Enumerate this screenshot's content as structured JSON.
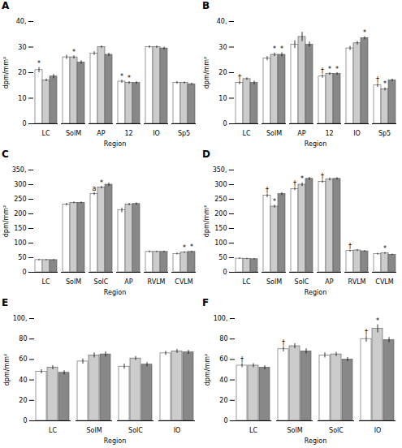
{
  "chart_data": [
    {
      "type": "bar",
      "title": "A",
      "xlabel": "Region",
      "ylabel": "dpm/mm²",
      "grid": false,
      "ylim": [
        0,
        40
      ],
      "yticks": [
        0,
        10,
        20,
        30,
        {
          "value": 40,
          "label": "40,"
        }
      ],
      "categories": [
        "LC",
        "SolM",
        "AP",
        "12",
        "IO",
        "Sp5"
      ],
      "series": [
        {
          "color": "#ffffff",
          "values": [
            21,
            26,
            27.5,
            16.5,
            30,
            16
          ],
          "errors": [
            1.0,
            0.8,
            0.7,
            0.6,
            0.5,
            0.5
          ]
        },
        {
          "color": "#cccccc",
          "values": [
            17,
            26,
            30,
            16,
            30,
            16
          ],
          "errors": [
            0.5,
            0.6,
            0.5,
            0.5,
            0.5,
            0.4
          ]
        },
        {
          "color": "#888888",
          "values": [
            18.5,
            24,
            27,
            16,
            29.5,
            15.5
          ],
          "errors": [
            0.8,
            0.7,
            0.6,
            0.5,
            0.5,
            0.4
          ]
        }
      ],
      "annotations": [
        {
          "series": 0,
          "category": "LC",
          "text": "*"
        },
        {
          "series": 1,
          "category": "SolM",
          "text": "*"
        },
        {
          "series": 0,
          "category": "12",
          "text": "*"
        },
        {
          "series": 1,
          "category": "12",
          "text": "*"
        }
      ]
    },
    {
      "type": "bar",
      "title": "B",
      "xlabel": "Region",
      "ylabel": "dpm/mm²",
      "grid": false,
      "ylim": [
        0,
        40
      ],
      "yticks": [
        0,
        10,
        20,
        30,
        {
          "value": 40,
          "label": "40,"
        }
      ],
      "categories": [
        "LC",
        "SolM",
        "AP",
        "12",
        "IO",
        "Sp5"
      ],
      "series": [
        {
          "color": "#ffffff",
          "values": [
            16,
            25.5,
            31,
            18.5,
            29.5,
            15
          ],
          "errors": [
            0.7,
            0.8,
            1.5,
            0.6,
            0.8,
            0.7
          ]
        },
        {
          "color": "#cccccc",
          "values": [
            17.5,
            27,
            34,
            19.5,
            31.5,
            13.5
          ],
          "errors": [
            0.5,
            0.7,
            1.8,
            0.5,
            0.7,
            0.6
          ]
        },
        {
          "color": "#888888",
          "values": [
            16,
            27,
            31,
            19.5,
            33.5,
            17
          ],
          "errors": [
            0.7,
            0.8,
            1.0,
            0.5,
            0.6,
            0.5
          ]
        }
      ],
      "annotations": [
        {
          "series": 0,
          "category": "LC",
          "text": "†"
        },
        {
          "series": 1,
          "category": "SolM",
          "text": "*"
        },
        {
          "series": 2,
          "category": "SolM",
          "text": "*"
        },
        {
          "series": 0,
          "category": "12",
          "text": "†"
        },
        {
          "series": 1,
          "category": "12",
          "text": "*"
        },
        {
          "series": 2,
          "category": "12",
          "text": "*"
        },
        {
          "series": 2,
          "category": "IO",
          "text": "*"
        },
        {
          "series": 0,
          "category": "Sp5",
          "text": "†"
        },
        {
          "series": 1,
          "category": "Sp5",
          "text": "*"
        }
      ]
    },
    {
      "type": "bar",
      "title": "C",
      "xlabel": "Region",
      "ylabel": "dpm/mm²",
      "grid": false,
      "ylim": [
        0,
        350
      ],
      "yticks": [
        0,
        50,
        100,
        150,
        200,
        250,
        300,
        {
          "value": 350,
          "label": "350,"
        }
      ],
      "categories": [
        "LC",
        "SolM",
        "SolC",
        "AP",
        "RVLM",
        "CVLM"
      ],
      "series": [
        {
          "color": "#ffffff",
          "values": [
            42,
            232,
            268,
            212,
            70,
            63
          ],
          "errors": [
            2.5,
            4,
            5,
            8,
            3,
            3
          ]
        },
        {
          "color": "#cccccc",
          "values": [
            42,
            238,
            290,
            232,
            70,
            68
          ],
          "errors": [
            2,
            3,
            4,
            4,
            2.5,
            2.5
          ]
        },
        {
          "color": "#888888",
          "values": [
            42,
            238,
            300,
            234,
            70,
            70
          ],
          "errors": [
            2,
            3,
            6,
            4,
            2.5,
            2.5
          ]
        }
      ],
      "annotations": [
        {
          "series": 0,
          "category": "SolC",
          "text": "a"
        },
        {
          "series": 1,
          "category": "SolC",
          "text": "*"
        },
        {
          "series": 1,
          "category": "CVLM",
          "text": "*"
        },
        {
          "series": 2,
          "category": "CVLM",
          "text": "*"
        }
      ]
    },
    {
      "type": "bar",
      "title": "D",
      "xlabel": "Region",
      "ylabel": "dpm/mm²",
      "grid": false,
      "ylim": [
        0,
        350
      ],
      "yticks": [
        0,
        50,
        100,
        150,
        200,
        250,
        300,
        {
          "value": 350,
          "label": "350,"
        }
      ],
      "categories": [
        "LC",
        "SolM",
        "SolC",
        "AP",
        "RVLM",
        "CVLM"
      ],
      "series": [
        {
          "color": "#ffffff",
          "values": [
            47,
            262,
            285,
            310,
            73,
            62
          ],
          "errors": [
            2.5,
            6,
            5,
            5,
            3,
            3
          ]
        },
        {
          "color": "#cccccc",
          "values": [
            46,
            225,
            300,
            318,
            75,
            65
          ],
          "errors": [
            2,
            5,
            6,
            5,
            3,
            3
          ]
        },
        {
          "color": "#888888",
          "values": [
            45,
            268,
            320,
            320,
            72,
            60
          ],
          "errors": [
            2,
            5,
            5,
            4,
            2.5,
            2.5
          ]
        }
      ],
      "annotations": [
        {
          "series": 0,
          "category": "SolM",
          "text": "†"
        },
        {
          "series": 1,
          "category": "SolM",
          "text": "*"
        },
        {
          "series": 0,
          "category": "SolC",
          "text": "†"
        },
        {
          "series": 1,
          "category": "SolC",
          "text": "*"
        },
        {
          "series": 0,
          "category": "AP",
          "text": "†"
        },
        {
          "series": 0,
          "category": "RVLM",
          "text": "†"
        },
        {
          "series": 1,
          "category": "CVLM",
          "text": "*"
        }
      ]
    },
    {
      "type": "bar",
      "title": "E",
      "xlabel": "Region",
      "ylabel": "dpm/mm²",
      "grid": false,
      "ylim": [
        0,
        100
      ],
      "yticks": [
        0,
        20,
        40,
        60,
        80,
        {
          "value": 100,
          "label": "100,"
        }
      ],
      "categories": [
        "LC",
        "SolM",
        "SolC",
        "IO"
      ],
      "series": [
        {
          "color": "#ffffff",
          "values": [
            48,
            58,
            53,
            66
          ],
          "errors": [
            2,
            2.5,
            2.5,
            2
          ]
        },
        {
          "color": "#cccccc",
          "values": [
            52,
            64,
            61,
            68
          ],
          "errors": [
            2,
            2.5,
            2,
            2
          ]
        },
        {
          "color": "#888888",
          "values": [
            47,
            65,
            55,
            67
          ],
          "errors": [
            2,
            2.5,
            2,
            2
          ]
        }
      ],
      "annotations": []
    },
    {
      "type": "bar",
      "title": "F",
      "xlabel": "Region",
      "ylabel": "dpm/mm²",
      "grid": false,
      "ylim": [
        0,
        100
      ],
      "yticks": [
        0,
        20,
        40,
        60,
        80,
        {
          "value": 100,
          "label": "100,"
        }
      ],
      "categories": [
        "LC",
        "SolM",
        "SolC",
        "IO"
      ],
      "series": [
        {
          "color": "#ffffff",
          "values": [
            54,
            70,
            64,
            80
          ],
          "errors": [
            2,
            2.5,
            2.5,
            3
          ]
        },
        {
          "color": "#cccccc",
          "values": [
            54,
            73,
            65,
            90
          ],
          "errors": [
            2,
            2.5,
            2,
            4
          ]
        },
        {
          "color": "#888888",
          "values": [
            52,
            68,
            60,
            79
          ],
          "errors": [
            2,
            2.5,
            2,
            2.5
          ]
        }
      ],
      "annotations": [
        {
          "series": 0,
          "category": "LC",
          "text": "†"
        },
        {
          "series": 0,
          "category": "SolM",
          "text": "†"
        },
        {
          "series": 0,
          "category": "IO",
          "text": "†"
        },
        {
          "series": 1,
          "category": "IO",
          "text": "*"
        }
      ]
    }
  ]
}
